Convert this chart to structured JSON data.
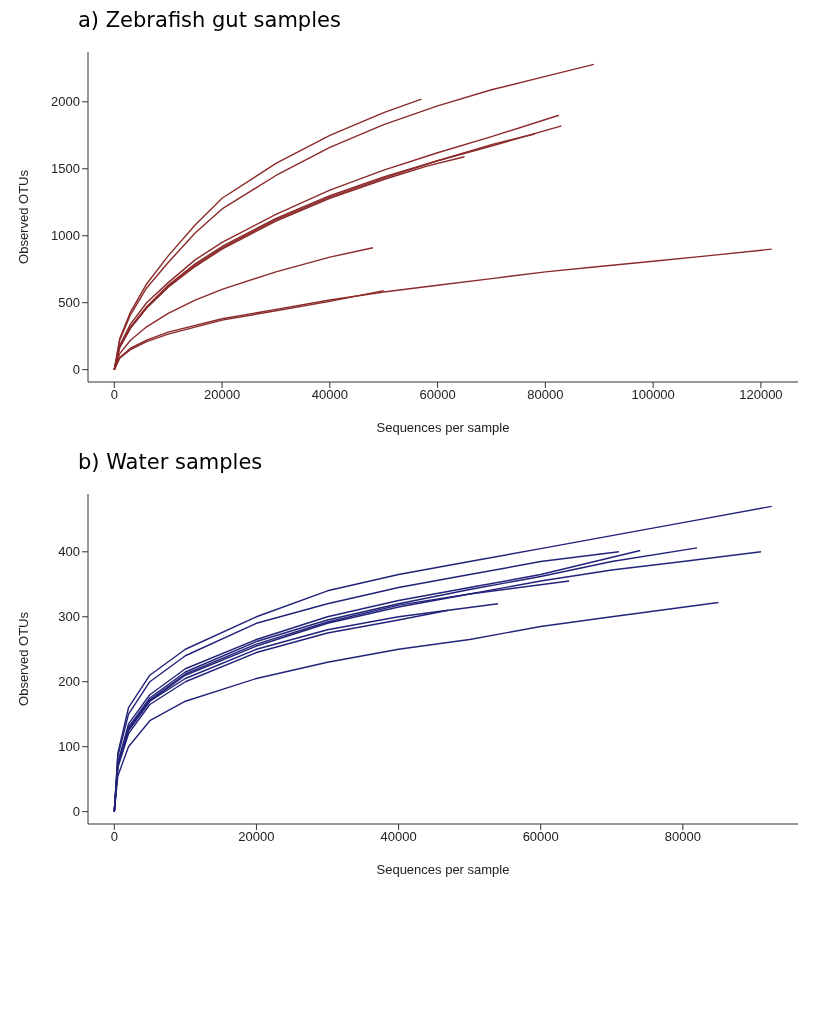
{
  "chart_data": [
    {
      "type": "line",
      "title": "a) Zebrafish gut samples",
      "xlabel": "Sequences per sample",
      "ylabel": "Observed OTUs",
      "xlim": [
        -4880,
        126880
      ],
      "ylim": [
        -92,
        2372
      ],
      "xticks": [
        0,
        20000,
        40000,
        60000,
        80000,
        100000,
        120000
      ],
      "yticks": [
        0,
        500,
        1000,
        1500,
        2000
      ],
      "grid": false,
      "marker": "none",
      "line_style": "solid",
      "series": [
        {
          "color": "#8b2a2a",
          "x": [
            0,
            1000,
            3000,
            6000,
            10000,
            15000,
            20000,
            30000,
            40000,
            50000,
            57000
          ],
          "values": [
            0,
            230,
            430,
            640,
            850,
            1080,
            1280,
            1540,
            1750,
            1920,
            2020
          ]
        },
        {
          "color": "#8b2a2a",
          "x": [
            0,
            1000,
            3000,
            6000,
            10000,
            15000,
            20000,
            30000,
            40000,
            50000,
            60000,
            70000,
            80000,
            89000
          ],
          "values": [
            0,
            220,
            410,
            610,
            800,
            1020,
            1200,
            1450,
            1660,
            1830,
            1970,
            2090,
            2190,
            2280
          ]
        },
        {
          "color": "#8b2a2a",
          "x": [
            0,
            1000,
            3000,
            6000,
            10000,
            15000,
            20000,
            30000,
            40000,
            50000,
            60000,
            70000,
            82500
          ],
          "values": [
            0,
            180,
            340,
            500,
            650,
            820,
            950,
            1160,
            1340,
            1490,
            1620,
            1740,
            1900
          ]
        },
        {
          "color": "#8b2a2a",
          "x": [
            0,
            1000,
            3000,
            6000,
            10000,
            15000,
            20000,
            30000,
            40000,
            50000,
            60000,
            70000,
            83000
          ],
          "values": [
            0,
            170,
            320,
            470,
            630,
            790,
            920,
            1130,
            1300,
            1440,
            1560,
            1670,
            1820
          ]
        },
        {
          "color": "#8b2a2a",
          "x": [
            0,
            1000,
            3000,
            6000,
            10000,
            15000,
            20000,
            30000,
            40000,
            50000,
            60000,
            70000,
            78000
          ],
          "values": [
            0,
            170,
            310,
            460,
            620,
            780,
            910,
            1120,
            1290,
            1430,
            1560,
            1680,
            1760
          ]
        },
        {
          "color": "#8b2a2a",
          "x": [
            0,
            1000,
            3000,
            6000,
            10000,
            15000,
            20000,
            30000,
            40000,
            50000,
            58000,
            65000
          ],
          "values": [
            0,
            165,
            310,
            460,
            615,
            770,
            900,
            1110,
            1280,
            1420,
            1520,
            1590
          ]
        },
        {
          "color": "#8b2a2a",
          "x": [
            0,
            1000,
            3000,
            6000,
            10000,
            15000,
            20000,
            30000,
            40000,
            48000
          ],
          "values": [
            0,
            120,
            220,
            320,
            420,
            520,
            600,
            730,
            840,
            910
          ]
        },
        {
          "color": "#8b2a2a",
          "x": [
            0,
            1000,
            3000,
            6000,
            10000,
            20000,
            30000,
            40000,
            50000,
            60000,
            70000,
            80000,
            90000,
            100000,
            110000,
            122000
          ],
          "values": [
            0,
            90,
            160,
            220,
            280,
            380,
            450,
            520,
            580,
            630,
            680,
            730,
            770,
            810,
            850,
            900
          ]
        },
        {
          "color": "#8b2a2a",
          "x": [
            0,
            1000,
            3000,
            6000,
            10000,
            20000,
            30000,
            40000,
            50000
          ],
          "values": [
            0,
            85,
            150,
            210,
            265,
            370,
            440,
            510,
            590
          ]
        }
      ]
    },
    {
      "type": "line",
      "title": "b) Water samples",
      "xlabel": "Sequences per sample",
      "ylabel": "Observed OTUs",
      "xlim": [
        -3700,
        96200
      ],
      "ylim": [
        -19,
        489
      ],
      "xticks": [
        0,
        20000,
        40000,
        60000,
        80000
      ],
      "yticks": [
        0,
        100,
        200,
        300,
        400
      ],
      "grid": false,
      "marker": "none",
      "line_style": "solid",
      "series": [
        {
          "color": "#22227a",
          "x": [
            0,
            500,
            2000,
            5000,
            10000,
            20000,
            30000,
            40000,
            50000,
            60000,
            70000,
            80000,
            92500
          ],
          "values": [
            0,
            90,
            160,
            210,
            250,
            300,
            340,
            365,
            385,
            405,
            425,
            445,
            470
          ]
        },
        {
          "color": "#22227a",
          "x": [
            0,
            500,
            2000,
            5000,
            10000,
            20000,
            30000,
            40000,
            50000,
            60000,
            71000
          ],
          "values": [
            0,
            85,
            150,
            200,
            240,
            290,
            320,
            345,
            365,
            385,
            400
          ]
        },
        {
          "color": "#22227a",
          "x": [
            0,
            500,
            2000,
            5000,
            10000,
            20000,
            30000,
            40000,
            50000,
            60000,
            74000
          ],
          "values": [
            0,
            75,
            135,
            180,
            220,
            265,
            300,
            325,
            345,
            365,
            402
          ]
        },
        {
          "color": "#22227a",
          "x": [
            0,
            500,
            2000,
            5000,
            10000,
            20000,
            30000,
            40000,
            50000,
            60000,
            70000,
            82000
          ],
          "values": [
            0,
            75,
            130,
            175,
            215,
            262,
            295,
            320,
            342,
            362,
            385,
            406
          ]
        },
        {
          "color": "#22227a",
          "x": [
            0,
            500,
            2000,
            5000,
            10000,
            20000,
            30000,
            40000,
            50000,
            60000,
            70000,
            80000,
            91000
          ],
          "values": [
            0,
            70,
            125,
            170,
            210,
            255,
            290,
            315,
            335,
            355,
            372,
            385,
            400
          ]
        },
        {
          "color": "#22227a",
          "x": [
            0,
            500,
            2000,
            5000,
            10000,
            20000,
            30000,
            40000,
            54000
          ],
          "values": [
            0,
            70,
            125,
            170,
            205,
            250,
            280,
            300,
            320
          ]
        },
        {
          "color": "#22227a",
          "x": [
            0,
            500,
            2000,
            5000,
            10000,
            20000,
            30000,
            40000,
            47000
          ],
          "values": [
            0,
            68,
            120,
            165,
            200,
            245,
            275,
            295,
            310
          ]
        },
        {
          "color": "#22227a",
          "x": [
            0,
            500,
            2000,
            5000,
            10000,
            20000,
            30000,
            40000,
            50000,
            64000
          ],
          "values": [
            0,
            72,
            128,
            172,
            212,
            258,
            292,
            318,
            335,
            355
          ]
        },
        {
          "color": "#22227a",
          "x": [
            0,
            500,
            2000,
            5000,
            10000,
            20000,
            30000,
            40000,
            50000,
            60000,
            70000,
            85000
          ],
          "values": [
            0,
            55,
            100,
            140,
            170,
            205,
            230,
            250,
            265,
            285,
            300,
            322
          ]
        }
      ]
    }
  ]
}
